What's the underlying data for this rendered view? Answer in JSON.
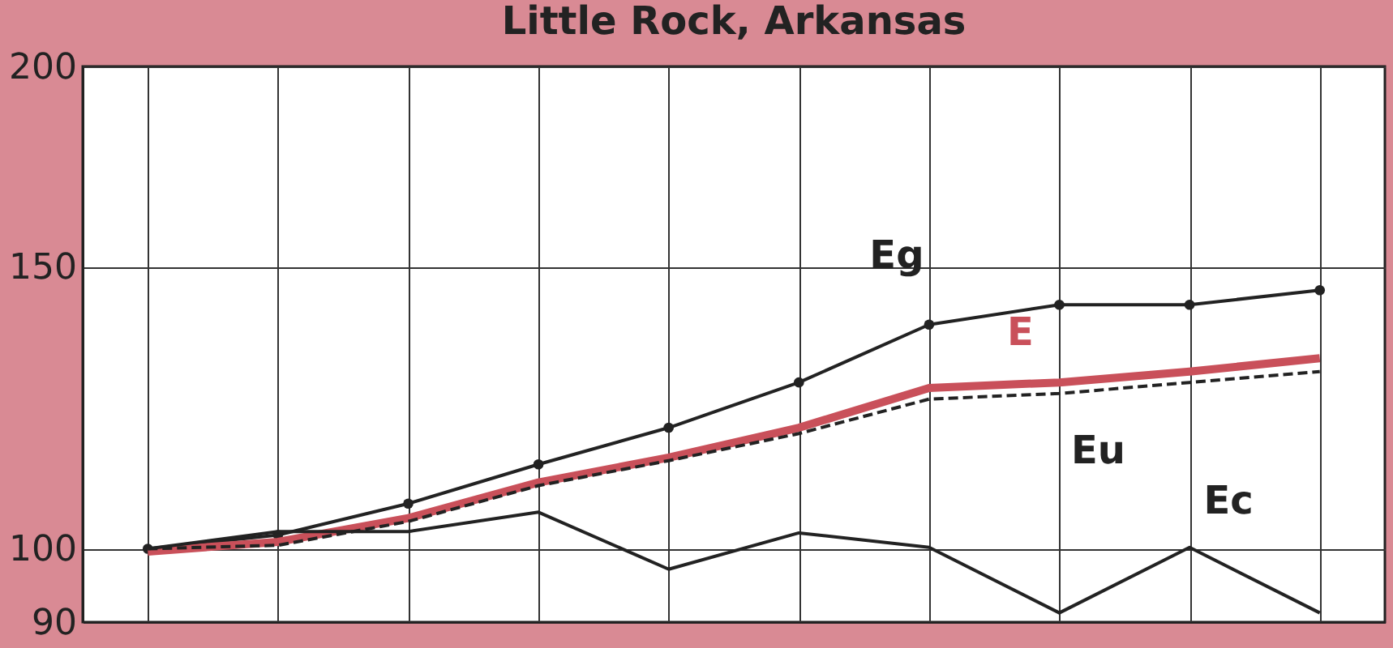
{
  "chart_data": {
    "type": "line",
    "title": "Little Rock, Arkansas",
    "categories": [
      null,
      null,
      null,
      null,
      null,
      null,
      null,
      null,
      null,
      null
    ],
    "series": [
      {
        "name": "Eg",
        "color": "#222222",
        "marker": "circle",
        "line_style": "solid",
        "values": [
          100,
          102,
          106.7,
          112.9,
          119,
          127,
          138,
          142,
          142,
          145
        ]
      },
      {
        "name": "E",
        "color": "#c9505a",
        "marker": "none",
        "line_style": "solid",
        "values": [
          99.6,
          101,
          104.5,
          110,
          114,
          119,
          126,
          127,
          129,
          131.5
        ]
      },
      {
        "name": "Eu",
        "color": "#222222",
        "marker": "none",
        "line_style": "dashed",
        "values": [
          100,
          100.5,
          104,
          109.5,
          113.5,
          118,
          124,
          125,
          127,
          129
        ]
      },
      {
        "name": "Ec",
        "color": "#222222",
        "marker": "none",
        "line_style": "solid",
        "values": [
          100,
          102.5,
          102.5,
          105.4,
          97.1,
          102.3,
          100.2,
          91.2,
          100.2,
          91.2
        ]
      }
    ],
    "log": true,
    "ylim": [
      90,
      200
    ],
    "yticks": [
      90,
      100,
      150,
      200
    ],
    "grid": true
  }
}
